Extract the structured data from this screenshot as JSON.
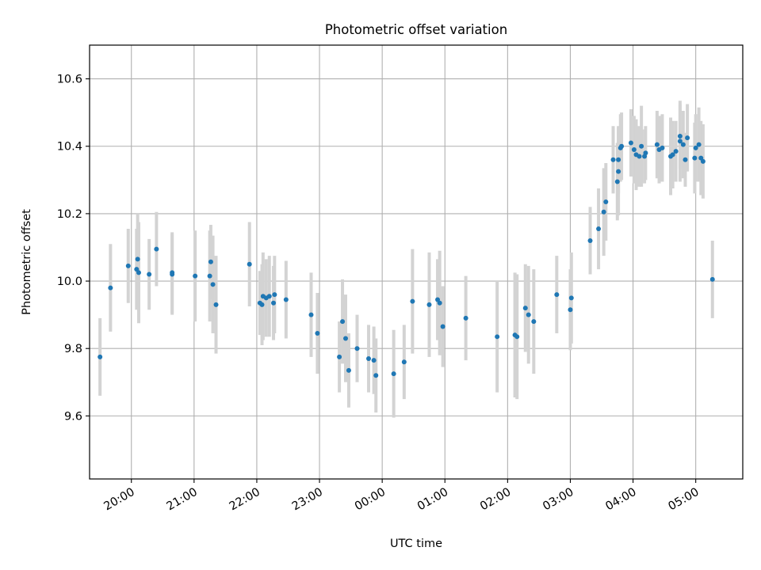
{
  "chart_data": {
    "type": "scatter",
    "title": "Photometric offset variation",
    "xlabel": "UTC time",
    "ylabel": "Photometric offset",
    "grid": true,
    "legend": "none",
    "x_ticks": [
      "20:00",
      "21:00",
      "22:00",
      "23:00",
      "00:00",
      "01:00",
      "02:00",
      "03:00",
      "04:00",
      "05:00"
    ],
    "y_ticks": [
      "9.6",
      "9.8",
      "10.0",
      "10.2",
      "10.4",
      "10.6"
    ],
    "xlim": [
      "19:20",
      "05:45"
    ],
    "ylim": [
      9.413,
      10.7
    ],
    "colors": {
      "points": "#1f77b4",
      "errorbars": "#d3d3d3",
      "grid": "#b0b0b0"
    },
    "series": [
      {
        "points": [
          [
            "19:30",
            9.775,
            0.23
          ],
          [
            "19:40",
            9.98,
            0.26
          ],
          [
            "19:57",
            10.045,
            0.22
          ],
          [
            "20:05",
            10.035,
            0.24
          ],
          [
            "20:06",
            10.065,
            0.27
          ],
          [
            "20:07",
            10.025,
            0.3
          ],
          [
            "20:17",
            10.02,
            0.21
          ],
          [
            "20:24",
            10.095,
            0.22
          ],
          [
            "20:39",
            10.025,
            0.24
          ],
          [
            "20:39",
            10.02,
            0.24
          ],
          [
            "21:01",
            10.015,
            0.27
          ],
          [
            "21:15",
            10.015,
            0.27
          ],
          [
            "21:16",
            10.057,
            0.22
          ],
          [
            "21:18",
            9.99,
            0.29
          ],
          [
            "21:21",
            9.93,
            0.29
          ],
          [
            "21:53",
            10.05,
            0.25
          ],
          [
            "22:03",
            9.935,
            0.19
          ],
          [
            "22:05",
            9.93,
            0.24
          ],
          [
            "22:06",
            9.955,
            0.26
          ],
          [
            "22:09",
            9.95,
            0.23
          ],
          [
            "22:12",
            9.955,
            0.24
          ],
          [
            "22:16",
            9.935,
            0.22
          ],
          [
            "22:17",
            9.96,
            0.23
          ],
          [
            "22:28",
            9.945,
            0.23
          ],
          [
            "22:52",
            9.9,
            0.25
          ],
          [
            "22:58",
            9.845,
            0.24
          ],
          [
            "23:19",
            9.775,
            0.21
          ],
          [
            "23:22",
            9.88,
            0.25
          ],
          [
            "23:25",
            9.83,
            0.26
          ],
          [
            "23:28",
            9.735,
            0.22
          ],
          [
            "23:36",
            9.8,
            0.2
          ],
          [
            "23:47",
            9.77,
            0.2
          ],
          [
            "23:52",
            9.765,
            0.2
          ],
          [
            "23:54",
            9.72,
            0.22
          ],
          [
            "00:11",
            9.725,
            0.26
          ],
          [
            "00:21",
            9.76,
            0.22
          ],
          [
            "00:29",
            9.94,
            0.31
          ],
          [
            "00:45",
            9.93,
            0.31
          ],
          [
            "00:53",
            9.945,
            0.24
          ],
          [
            "00:55",
            9.935,
            0.31
          ],
          [
            "00:58",
            9.865,
            0.24
          ],
          [
            "01:20",
            9.89,
            0.25
          ],
          [
            "01:50",
            9.835,
            0.33
          ],
          [
            "02:07",
            9.84,
            0.37
          ],
          [
            "02:09",
            9.835,
            0.37
          ],
          [
            "02:17",
            9.92,
            0.26
          ],
          [
            "02:20",
            9.9,
            0.29
          ],
          [
            "02:25",
            9.88,
            0.31
          ],
          [
            "02:47",
            9.96,
            0.23
          ],
          [
            "03:00",
            9.915,
            0.24
          ],
          [
            "03:01",
            9.95,
            0.27
          ],
          [
            "03:19",
            10.12,
            0.2
          ],
          [
            "03:27",
            10.155,
            0.24
          ],
          [
            "03:32",
            10.205,
            0.26
          ],
          [
            "03:34",
            10.235,
            0.23
          ],
          [
            "03:41",
            10.36,
            0.2
          ],
          [
            "03:45",
            10.295,
            0.23
          ],
          [
            "03:46",
            10.36,
            0.2
          ],
          [
            "03:46",
            10.325,
            0.26
          ],
          [
            "03:48",
            10.395,
            0.2
          ],
          [
            "03:49",
            10.4,
            0.2
          ],
          [
            "03:58",
            10.41,
            0.2
          ],
          [
            "04:01",
            10.39,
            0.2
          ],
          [
            "04:03",
            10.375,
            0.21
          ],
          [
            "04:06",
            10.37,
            0.18
          ],
          [
            "04:08",
            10.4,
            0.24
          ],
          [
            "04:11",
            10.37,
            0.16
          ],
          [
            "04:12",
            10.38,
            0.16
          ],
          [
            "04:23",
            10.405,
            0.2
          ],
          [
            "04:25",
            10.39,
            0.2
          ],
          [
            "04:28",
            10.395,
            0.2
          ],
          [
            "04:36",
            10.37,
            0.23
          ],
          [
            "04:38",
            10.375,
            0.2
          ],
          [
            "04:41",
            10.385,
            0.18
          ],
          [
            "04:45",
            10.415,
            0.24
          ],
          [
            "04:45",
            10.43,
            0.19
          ],
          [
            "04:48",
            10.405,
            0.2
          ],
          [
            "04:50",
            10.36,
            0.16
          ],
          [
            "04:52",
            10.425,
            0.2
          ],
          [
            "04:59",
            10.365,
            0.21
          ],
          [
            "05:00",
            10.395,
            0.2
          ],
          [
            "05:03",
            10.405,
            0.22
          ],
          [
            "05:05",
            10.365,
            0.22
          ],
          [
            "05:07",
            10.355,
            0.22
          ],
          [
            "05:16",
            10.005,
            0.23
          ]
        ]
      }
    ]
  }
}
